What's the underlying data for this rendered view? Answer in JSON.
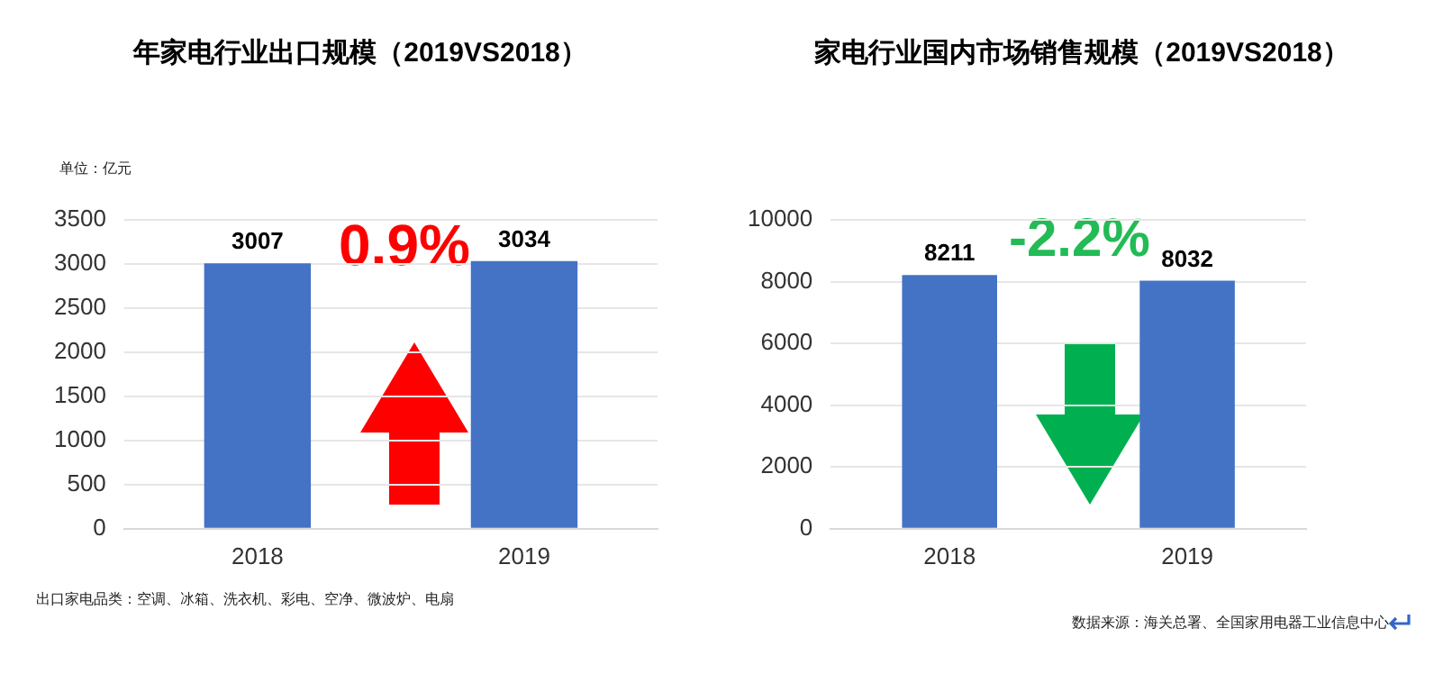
{
  "chart_data": [
    {
      "type": "bar",
      "title": "年家电行业出口规模（2019VS2018）",
      "categories": [
        "2018",
        "2019"
      ],
      "values": [
        3007,
        3034
      ],
      "color": "#4472c4",
      "ylim": [
        0,
        3500
      ],
      "yticks": [
        0,
        500,
        1000,
        1500,
        2000,
        2500,
        3000,
        3500
      ],
      "grid": "y",
      "data_labels": true,
      "legend": false,
      "annotations": [
        "单位：亿元",
        "0.9%",
        "出口家电品类：空调、冰箱、洗衣机、彩电、空净、微波炉、电扇"
      ]
    },
    {
      "type": "bar",
      "title": "家电行业国内市场销售规模（2019VS2018）",
      "categories": [
        "2018",
        "2019"
      ],
      "values": [
        8211,
        8032
      ],
      "color": "#4472c4",
      "ylim": [
        0,
        10000
      ],
      "yticks": [
        0,
        2000,
        4000,
        6000,
        8000,
        10000
      ],
      "grid": "y",
      "data_labels": true,
      "legend": false,
      "annotations": [
        "-2.2%",
        "数据来源：海关总署、全国家用电器工业信息中心"
      ]
    }
  ]
}
